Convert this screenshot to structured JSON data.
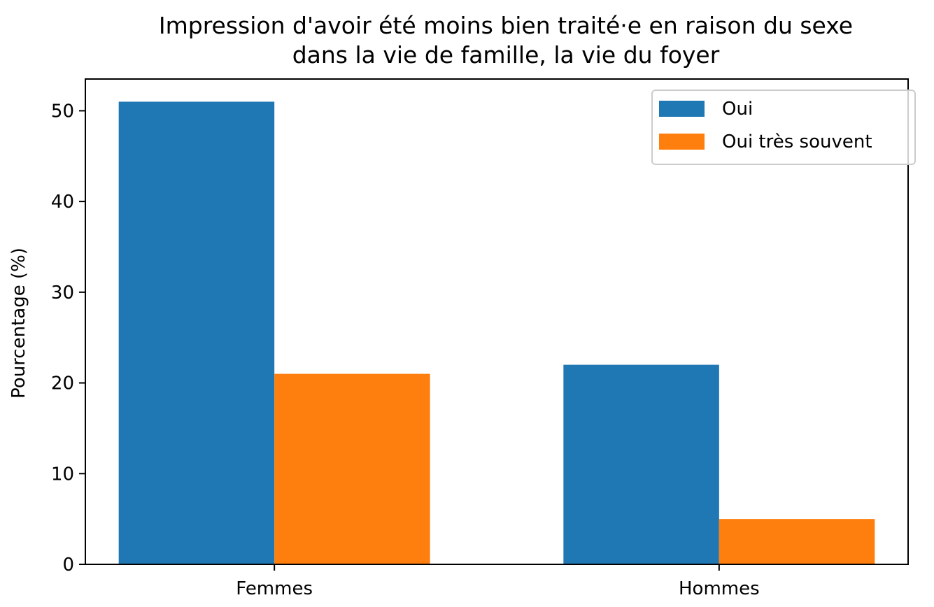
{
  "chart_data": {
    "type": "bar",
    "title_lines": [
      "Impression d'avoir été moins bien traité·e en raison du sexe",
      "dans la vie de famille, la vie du foyer"
    ],
    "xlabel": "",
    "ylabel": "Pourcentage (%)",
    "categories": [
      "Femmes",
      "Hommes"
    ],
    "series": [
      {
        "name": "Oui",
        "values": [
          51,
          22
        ],
        "color": "#1f77b4"
      },
      {
        "name": "Oui très souvent",
        "values": [
          21,
          5
        ],
        "color": "#ff7f0e"
      }
    ],
    "ylim": [
      0,
      53.5
    ],
    "yticks": [
      0,
      10,
      20,
      30,
      40,
      50
    ],
    "grid": false,
    "legend_position": "top-right"
  }
}
